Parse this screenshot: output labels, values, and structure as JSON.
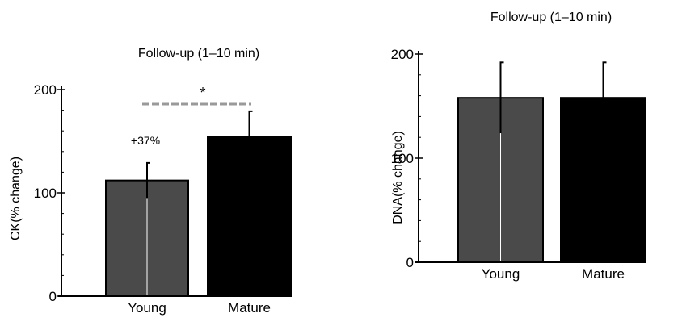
{
  "chart_data": [
    {
      "type": "bar",
      "title": "Follow-up (1–10 min)",
      "ylabel": "CK(%  change)",
      "categories": [
        "Young",
        "Mature"
      ],
      "values": [
        112,
        154
      ],
      "errors": [
        17,
        25
      ],
      "ylim": [
        0,
        200
      ],
      "yticks": [
        "0",
        "100",
        "200"
      ],
      "bar_colors": [
        "#4a4a4a",
        "#000000"
      ],
      "annotations": {
        "percent_label": "+37%",
        "significance": "*"
      }
    },
    {
      "type": "bar",
      "title": "Follow-up (1–10 min)",
      "ylabel": "DNA(%  change)",
      "categories": [
        "Young",
        "Mature"
      ],
      "values": [
        158,
        158
      ],
      "errors": [
        34,
        34
      ],
      "ylim": [
        0,
        200
      ],
      "yticks": [
        "0",
        "100",
        "200"
      ],
      "bar_colors": [
        "#4a4a4a",
        "#000000"
      ]
    }
  ]
}
